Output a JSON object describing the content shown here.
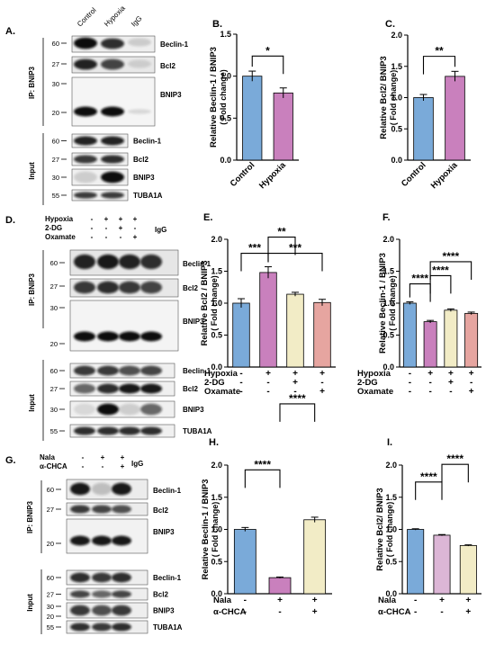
{
  "colors": {
    "blue": "#7AAAD9",
    "pink": "#C980BD",
    "cream": "#F2ECC6",
    "salmon": "#E6A5A0",
    "pale_pink": "#DCB6D6",
    "axis": "#000000"
  },
  "panels": {
    "A": {
      "letter": "A.",
      "col_labels": [
        "Control",
        "Hypoxia",
        "IgG"
      ],
      "ip_label": "IP: BNIP3",
      "input_label": "Input",
      "blots": [
        {
          "name": "Beclin-1",
          "mw": "60"
        },
        {
          "name": "Bcl2",
          "mw": "27"
        },
        {
          "name": "BNIP3",
          "mw_top": "30",
          "mw_bottom": "20"
        }
      ],
      "input_blots": [
        {
          "name": "Beclin-1",
          "mw": "60"
        },
        {
          "name": "Bcl2",
          "mw": "27"
        },
        {
          "name": "BNIP3",
          "mw": "30"
        },
        {
          "name": "TUBA1A",
          "mw": "55"
        }
      ]
    },
    "D": {
      "letter": "D.",
      "row_labels": [
        "Hypoxia",
        "2-DG",
        "Oxamate"
      ],
      "signs": [
        [
          "-",
          "+",
          "+",
          "+"
        ],
        [
          "-",
          "-",
          "+",
          "-"
        ],
        [
          "-",
          "-",
          "-",
          "+"
        ]
      ],
      "igg": "IgG",
      "ip_label": "IP: BNIP3",
      "input_label": "Input",
      "blots": [
        {
          "name": "Beclin-1",
          "mw": "60"
        },
        {
          "name": "Bcl2",
          "mw": "27"
        },
        {
          "name": "BNIP3",
          "mw_top": "30",
          "mw_bottom": "20"
        }
      ],
      "input_blots": [
        {
          "name": "Beclin-1",
          "mw": "60"
        },
        {
          "name": "Bcl2",
          "mw": "27"
        },
        {
          "name": "BNIP3",
          "mw": "30"
        },
        {
          "name": "TUBA1A",
          "mw": "55"
        }
      ]
    },
    "G": {
      "letter": "G.",
      "row_labels": [
        "Nala",
        "α-CHCA"
      ],
      "signs": [
        [
          "-",
          "+",
          "+"
        ],
        [
          "-",
          "-",
          "+"
        ]
      ],
      "igg": "IgG",
      "ip_label": "IP: BNIP3",
      "input_label": "Input",
      "blots": [
        {
          "name": "Beclin-1",
          "mw": "60"
        },
        {
          "name": "Bcl2",
          "mw": "27"
        },
        {
          "name": "BNIP3",
          "mw": "20"
        }
      ],
      "input_blots": [
        {
          "name": "Beclin-1",
          "mw": "60"
        },
        {
          "name": "Bcl2",
          "mw": "27"
        },
        {
          "name": "BNIP3",
          "mw_top": "30",
          "mw_bottom": "20"
        },
        {
          "name": "TUBA1A",
          "mw": "55"
        }
      ]
    }
  },
  "chart_data": [
    {
      "letter": "B.",
      "type": "bar",
      "ylabel": "Relative Beclin-1 / BNIP3",
      "ylabel2": "( Fold change)",
      "ylim": [
        0,
        1.5
      ],
      "ticks": [
        "0.0",
        "0.5",
        "1.0",
        "1.5"
      ],
      "categories": [
        "Control",
        "Hypoxia"
      ],
      "values": [
        1.0,
        0.8
      ],
      "errors": [
        0.06,
        0.06
      ],
      "colors": [
        "blue",
        "pink"
      ],
      "sig": [
        "*"
      ]
    },
    {
      "letter": "C.",
      "type": "bar",
      "ylabel": "Relative Bcl2/ BNIP3",
      "ylabel2": "( Fold change)",
      "ylim": [
        0,
        2.0
      ],
      "ticks": [
        "0.0",
        "0.5",
        "1.0",
        "1.5",
        "2.0"
      ],
      "categories": [
        "Control",
        "Hypoxia"
      ],
      "values": [
        1.0,
        1.34
      ],
      "errors": [
        0.05,
        0.08
      ],
      "colors": [
        "blue",
        "pink"
      ],
      "sig": [
        "**"
      ]
    },
    {
      "letter": "E.",
      "type": "bar",
      "ylabel": "Relative Bcl2 / BNIP3",
      "ylabel2": "( Fold change)",
      "ylim": [
        0,
        2.0
      ],
      "ticks": [
        "0.0",
        "0.5",
        "1.0",
        "1.5",
        "2.0"
      ],
      "row_labels": [
        "Hypoxia",
        "2-DG",
        "Oxamate"
      ],
      "signs": [
        [
          "-",
          "+",
          "+",
          "+"
        ],
        [
          "-",
          "-",
          "+",
          "-"
        ],
        [
          "-",
          "-",
          "-",
          "+"
        ]
      ],
      "values": [
        1.0,
        1.48,
        1.14,
        1.01
      ],
      "errors": [
        0.07,
        0.09,
        0.03,
        0.05
      ],
      "colors": [
        "blue",
        "pink",
        "cream",
        "salmon"
      ],
      "sig": [
        "***",
        "**",
        "***"
      ]
    },
    {
      "letter": "F.",
      "type": "bar",
      "ylabel": "Relative Beclin-1 / BNIP3",
      "ylabel2": "( Fold change)",
      "ylim": [
        0,
        2.0
      ],
      "ticks": [
        "0.0",
        "0.5",
        "1.0",
        "1.5",
        "2.0"
      ],
      "row_labels": [
        "Hypoxia",
        "2-DG",
        "Oxamate"
      ],
      "signs": [
        [
          "-",
          "+",
          "+",
          "+"
        ],
        [
          "-",
          "-",
          "+",
          "-"
        ],
        [
          "-",
          "-",
          "-",
          "+"
        ]
      ],
      "values": [
        1.0,
        0.71,
        0.89,
        0.84
      ],
      "errors": [
        0.02,
        0.02,
        0.02,
        0.02
      ],
      "colors": [
        "blue",
        "pink",
        "cream",
        "salmon"
      ],
      "sig": [
        "****",
        "****",
        "****"
      ]
    },
    {
      "letter": "H.",
      "type": "bar",
      "ylabel": "Relative Beclin-1 / BNIP3",
      "ylabel2": "( Fold change)",
      "ylim": [
        0,
        2.0
      ],
      "ticks": [
        "0.0",
        "0.5",
        "1.0",
        "1.5",
        "2.0"
      ],
      "row_labels": [
        "Nala",
        "α-CHCA"
      ],
      "signs": [
        [
          "-",
          "+",
          "+"
        ],
        [
          "-",
          "-",
          "+"
        ]
      ],
      "values": [
        1.0,
        0.25,
        1.15
      ],
      "errors": [
        0.03,
        0.01,
        0.04
      ],
      "colors": [
        "blue",
        "pink",
        "cream"
      ],
      "sig": [
        "****",
        "****"
      ]
    },
    {
      "letter": "I.",
      "type": "bar",
      "ylabel": "Relative Bcl2/ BNIP3",
      "ylabel2": "( Fold change)",
      "ylim": [
        0,
        2.0
      ],
      "ticks": [
        "0.0",
        "0.5",
        "1.0",
        "1.5",
        "2.0"
      ],
      "row_labels": [
        "Nala",
        "α-CHCA"
      ],
      "signs": [
        [
          "-",
          "+",
          "+"
        ],
        [
          "-",
          "-",
          "+"
        ]
      ],
      "values": [
        1.0,
        0.91,
        0.75
      ],
      "errors": [
        0.01,
        0.01,
        0.01
      ],
      "colors": [
        "blue",
        "pale_pink",
        "cream"
      ],
      "sig": [
        "****",
        "****"
      ]
    }
  ]
}
